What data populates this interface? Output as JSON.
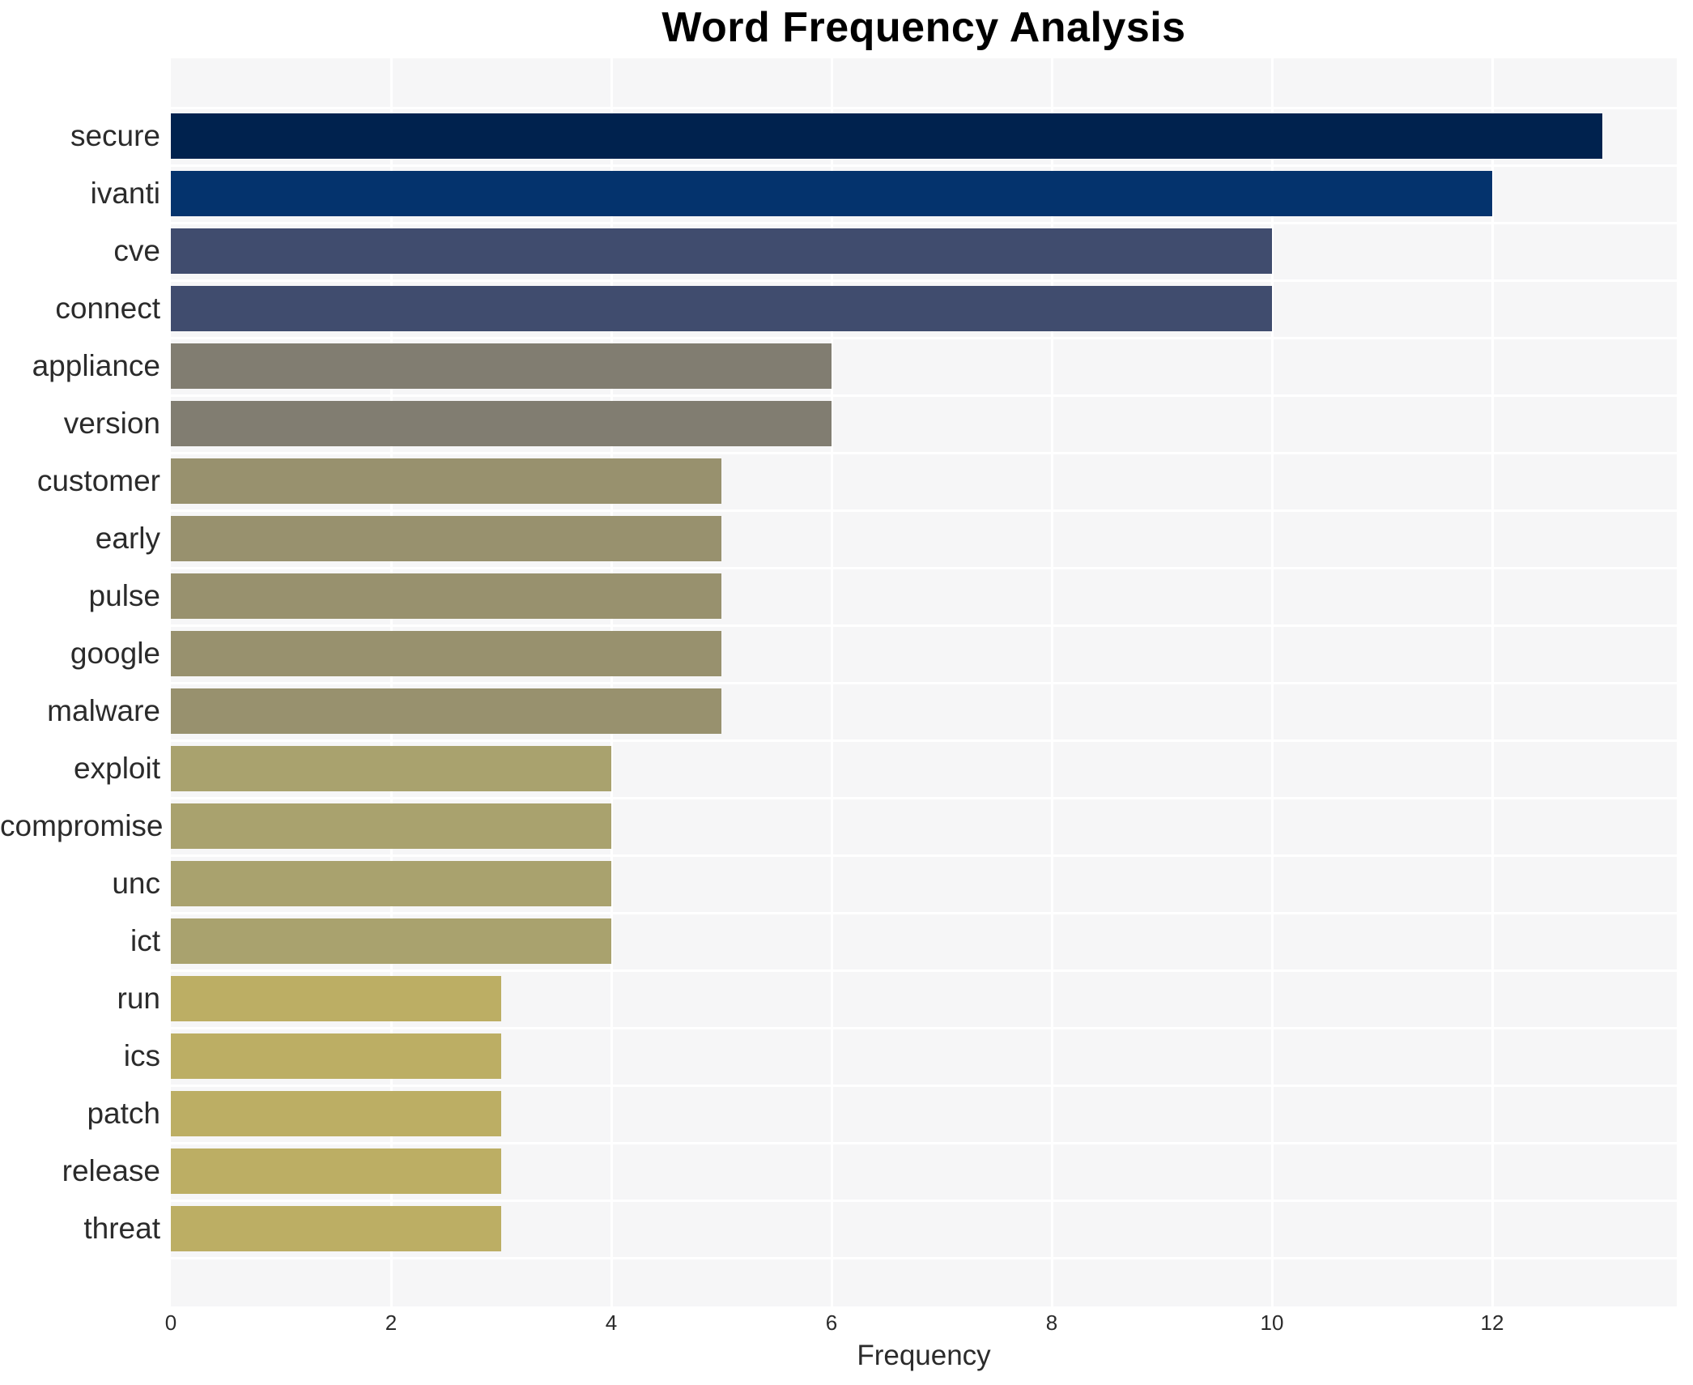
{
  "title": "Word Frequency Analysis",
  "chart_data": {
    "type": "bar",
    "orientation": "horizontal",
    "title": "Word Frequency Analysis",
    "xlabel": "Frequency",
    "ylabel": "",
    "categories": [
      "secure",
      "ivanti",
      "cve",
      "connect",
      "appliance",
      "version",
      "customer",
      "early",
      "pulse",
      "google",
      "malware",
      "exploit",
      "compromise",
      "unc",
      "ict",
      "run",
      "ics",
      "patch",
      "release",
      "threat"
    ],
    "values": [
      13,
      12,
      10,
      10,
      6,
      6,
      5,
      5,
      5,
      5,
      5,
      4,
      4,
      4,
      4,
      3,
      3,
      3,
      3,
      3
    ],
    "bar_colors": [
      "#00224e",
      "#04336d",
      "#404c6e",
      "#404c6e",
      "#817d71",
      "#817d71",
      "#98916e",
      "#98916e",
      "#98916e",
      "#98916e",
      "#98916e",
      "#a9a26e",
      "#a9a26e",
      "#a9a26e",
      "#a9a26e",
      "#bcae64",
      "#bcae64",
      "#bcae64",
      "#bcae64",
      "#bcae64"
    ],
    "x_ticks": [
      0,
      2,
      4,
      6,
      8,
      10,
      12
    ],
    "xlim": [
      0,
      13.68
    ],
    "grid": true,
    "legend_position": "none",
    "plot_background": "#f6f6f7",
    "grid_color": "#ffffff",
    "text_color": "#2b2b2b",
    "title_color": "#000000"
  }
}
